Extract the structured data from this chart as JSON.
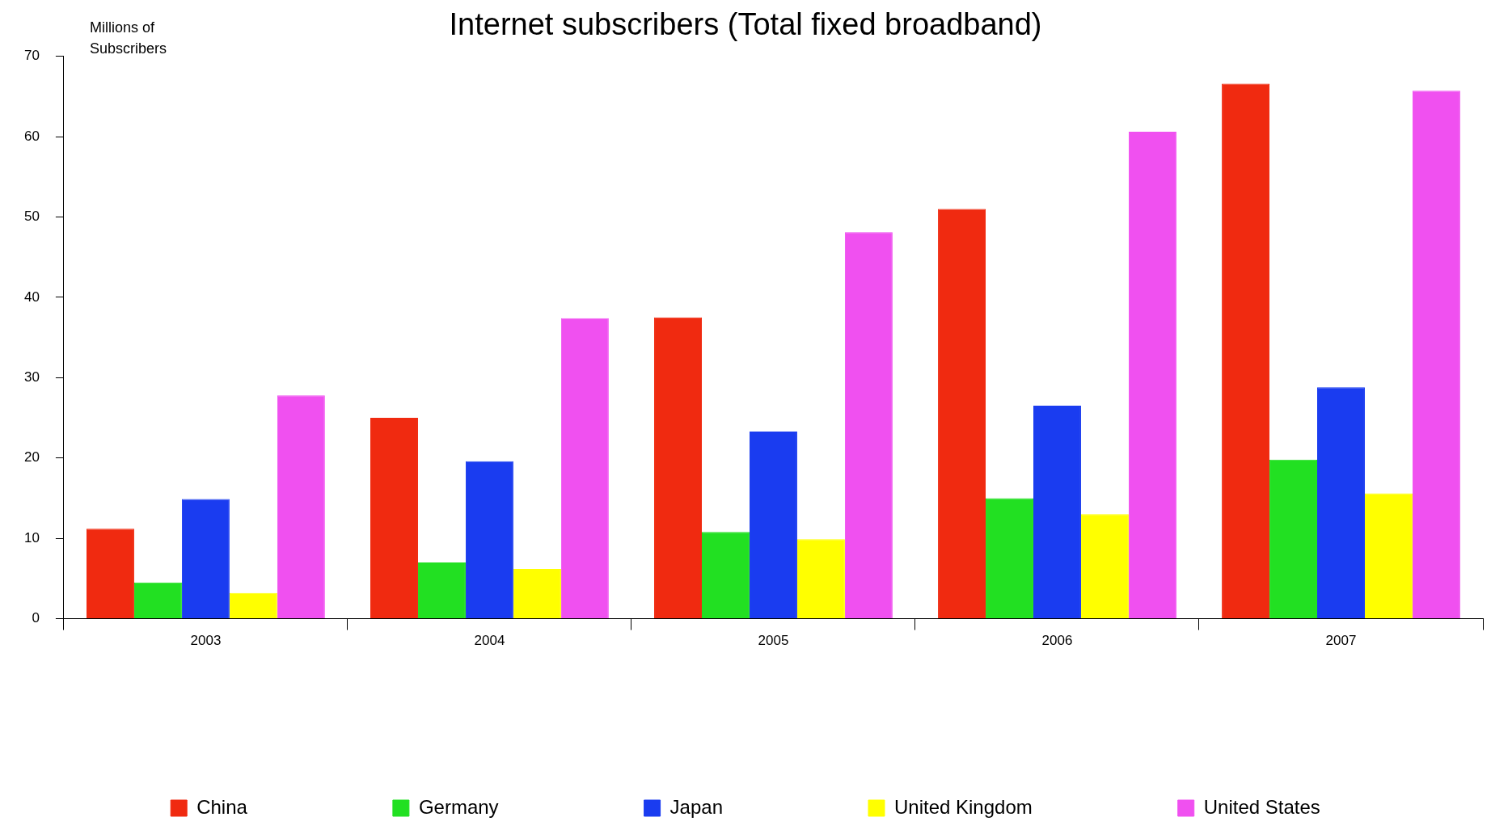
{
  "chart_data": {
    "type": "bar",
    "title": "Internet subscribers (Total fixed broadband)",
    "ylabel": "Millions of Subscribers",
    "categories": [
      "2003",
      "2004",
      "2005",
      "2006",
      "2007"
    ],
    "series": [
      {
        "name": "China",
        "color": "#f02a10",
        "values": [
          11.2,
          25.0,
          37.5,
          51.0,
          66.6
        ]
      },
      {
        "name": "Germany",
        "color": "#22e022",
        "values": [
          4.5,
          7.0,
          10.8,
          15.0,
          19.8
        ]
      },
      {
        "name": "Japan",
        "color": "#1a3cf0",
        "values": [
          14.9,
          19.6,
          23.3,
          26.5,
          28.8
        ]
      },
      {
        "name": "United Kingdom",
        "color": "#ffff00",
        "values": [
          3.2,
          6.2,
          9.9,
          13.0,
          15.6
        ]
      },
      {
        "name": "United States",
        "color": "#f050f0",
        "values": [
          27.8,
          37.4,
          48.1,
          60.6,
          65.7
        ]
      }
    ],
    "ylim": [
      0,
      70
    ],
    "yticks": [
      0,
      10,
      20,
      30,
      40,
      50,
      60,
      70
    ],
    "legend": "bottom"
  }
}
